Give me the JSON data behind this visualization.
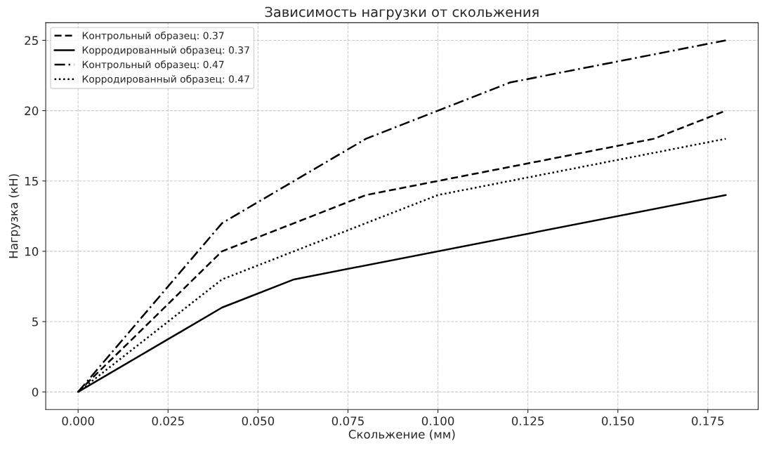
{
  "chart_data": {
    "type": "line",
    "title": "Зависимость нагрузки от скольжения",
    "xlabel": "Скольжение (мм)",
    "ylabel": "Нагрузка (кН)",
    "series": [
      {
        "name": "Контрольный образец: 0.37",
        "color": "#000000",
        "line_style": "dashed",
        "x": [
          0,
          0.04,
          0.08,
          0.1,
          0.16,
          0.18
        ],
        "values": [
          0,
          10,
          14,
          15,
          18,
          20
        ]
      },
      {
        "name": "Корродированный образец: 0.37",
        "color": "#000000",
        "line_style": "solid",
        "x": [
          0,
          0.04,
          0.06,
          0.18
        ],
        "values": [
          0,
          6,
          8,
          14
        ]
      },
      {
        "name": "Контрольный образец: 0.47",
        "color": "#000000",
        "line_style": "dashdot",
        "x": [
          0,
          0.04,
          0.08,
          0.1,
          0.12,
          0.18
        ],
        "values": [
          0,
          12,
          18,
          20,
          22,
          25
        ]
      },
      {
        "name": "Корродированный образец: 0.47",
        "color": "#000000",
        "line_style": "dotted",
        "x": [
          0,
          0.04,
          0.1,
          0.18
        ],
        "values": [
          0,
          8,
          14,
          18
        ]
      }
    ],
    "xlim": [
      -0.009,
      0.189
    ],
    "ylim": [
      -1.25,
      26.25
    ],
    "xticks": [
      {
        "value": 0,
        "label": "0.000"
      },
      {
        "value": 0.025,
        "label": "0.025"
      },
      {
        "value": 0.05,
        "label": "0.050"
      },
      {
        "value": 0.075,
        "label": "0.075"
      },
      {
        "value": 0.1,
        "label": "0.100"
      },
      {
        "value": 0.125,
        "label": "0.125"
      },
      {
        "value": 0.15,
        "label": "0.150"
      },
      {
        "value": 0.175,
        "label": "0.175"
      }
    ],
    "yticks": [
      0,
      5,
      10,
      15,
      20,
      25
    ],
    "grid": true,
    "legend": "top left",
    "marker": "none"
  }
}
